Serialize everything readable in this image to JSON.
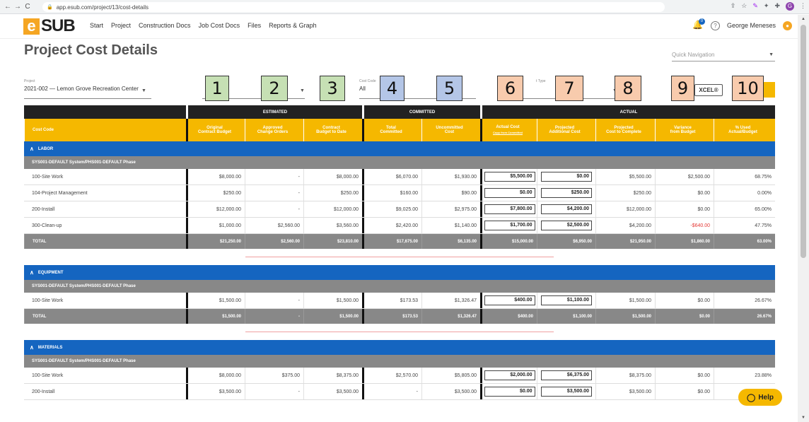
{
  "browser": {
    "url": "app.esub.com/project/13/cost-details",
    "profile_initial": "G"
  },
  "nav": {
    "logo_letter": "e",
    "logo_text": "SUB",
    "menu": [
      "Start",
      "Project",
      "Construction Docs",
      "Job Cost Docs",
      "Files",
      "Reports & Graph"
    ],
    "notification_count": "0",
    "user_name": "George Meneses"
  },
  "page": {
    "title": "Project Cost Details",
    "quick_nav_placeholder": "Quick Navigation"
  },
  "filters": {
    "project_label": "Project",
    "project_value": "2021-002 — Lemon Grove Recreation Center",
    "cost_code_label": "Cost Code",
    "cost_code_value": "All",
    "cost_type_label": "t Type",
    "excel_label": "XCEL®"
  },
  "callouts": [
    "1",
    "2",
    "3",
    "4",
    "5",
    "6",
    "7",
    "8",
    "9",
    "10"
  ],
  "table": {
    "groups": [
      "ESTIMATED",
      "COMMITTED",
      "ACTUAL"
    ],
    "columns": [
      "Cost Code",
      "Original\nContract Budget",
      "Approved\nChange Orders",
      "Contract\nBudget to Date",
      "Total\nCommitted",
      "Uncommitted\nCost",
      "Actual Cost",
      "Projected\nAdditional Cost",
      "Projected\nCost to Complete",
      "Variance\nfrom Budget",
      "% Used\nActual/Budget"
    ],
    "copy_link": "Copy from Committed",
    "sections": [
      {
        "name": "LABOR",
        "subsection": "SYS001-DEFAULT System/PHS001-DEFAULT Phase",
        "rows": [
          [
            "100-Site Work",
            "$8,000.00",
            "-",
            "$8,000.00",
            "$6,070.00",
            "$1,930.00",
            "$5,500.00",
            "$0.00",
            "$5,500.00",
            "$2,500.00",
            "68.75%"
          ],
          [
            "104-Project Management",
            "$250.00",
            "-",
            "$250.00",
            "$160.00",
            "$90.00",
            "$0.00",
            "$250.00",
            "$250.00",
            "$0.00",
            "0.00%"
          ],
          [
            "200-Install",
            "$12,000.00",
            "-",
            "$12,000.00",
            "$9,025.00",
            "$2,975.00",
            "$7,800.00",
            "$4,200.00",
            "$12,000.00",
            "$0.00",
            "65.00%"
          ],
          [
            "300-Clean-up",
            "$1,000.00",
            "$2,560.00",
            "$3,560.00",
            "$2,420.00",
            "$1,140.00",
            "$1,700.00",
            "$2,500.00",
            "$4,200.00",
            "-$640.00",
            "47.75%"
          ]
        ],
        "total": [
          "TOTAL",
          "$21,250.00",
          "$2,560.00",
          "$23,810.00",
          "$17,675.00",
          "$6,135.00",
          "$15,000.00",
          "$6,950.00",
          "$21,950.00",
          "$1,860.00",
          "63.00%"
        ]
      },
      {
        "name": "EQUIPMENT",
        "subsection": "SYS001-DEFAULT System/PHS001-DEFAULT Phase",
        "rows": [
          [
            "100-Site Work",
            "$1,500.00",
            "-",
            "$1,500.00",
            "$173.53",
            "$1,326.47",
            "$400.00",
            "$1,100.00",
            "$1,500.00",
            "$0.00",
            "26.67%"
          ]
        ],
        "total": [
          "TOTAL",
          "$1,500.00",
          "-",
          "$1,500.00",
          "$173.53",
          "$1,326.47",
          "$400.00",
          "$1,100.00",
          "$1,500.00",
          "$0.00",
          "26.67%"
        ]
      },
      {
        "name": "MATERIALS",
        "subsection": "SYS001-DEFAULT System/PHS001-DEFAULT Phase",
        "rows": [
          [
            "100-Site Work",
            "$8,000.00",
            "$375.00",
            "$8,375.00",
            "$2,570.00",
            "$5,805.00",
            "$2,000.00",
            "$6,375.00",
            "$8,375.00",
            "$0.00",
            "23.88%"
          ],
          [
            "200-Install",
            "$3,500.00",
            "-",
            "$3,500.00",
            "-",
            "$3,500.00",
            "$0.00",
            "$3,500.00",
            "$3,500.00",
            "$0.00",
            ""
          ]
        ]
      }
    ]
  },
  "help_label": "Help",
  "colors": {
    "accent": "#f5b800",
    "section": "#1565c0",
    "negative": "#e53935"
  }
}
